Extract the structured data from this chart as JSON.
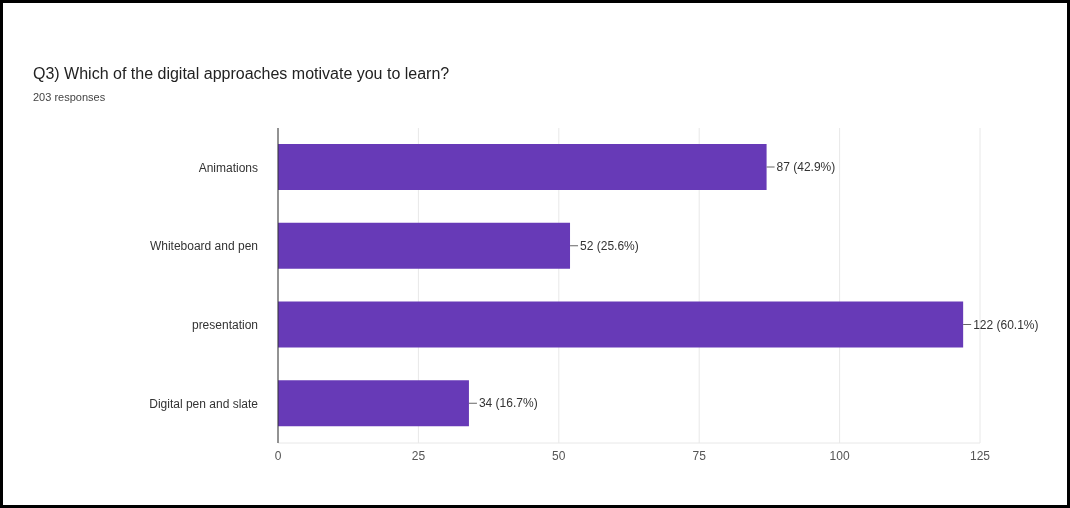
{
  "chart_data": {
    "type": "bar",
    "orientation": "horizontal",
    "title": "Q3) Which of the digital approaches motivate you to learn?",
    "subtitle": "203 responses",
    "categories": [
      "Animations",
      "Whiteboard and pen",
      "presentation",
      "Digital pen and slate"
    ],
    "values": [
      87,
      52,
      122,
      34
    ],
    "value_labels": [
      "87 (42.9%)",
      "52 (25.6%)",
      "122 (60.1%)",
      "34 (16.7%)"
    ],
    "color": "#673ab7",
    "xlim": [
      0,
      125
    ],
    "xticks": [
      0,
      25,
      50,
      75,
      100,
      125
    ],
    "grid": "x"
  }
}
